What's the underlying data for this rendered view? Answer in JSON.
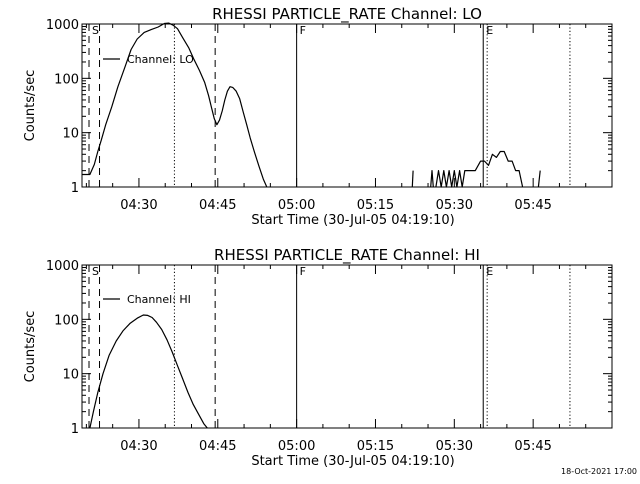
{
  "chart_data": [
    {
      "type": "line",
      "title": "RHESSI PARTICLE_RATE Channel: LO",
      "xlabel": "Start Time (30-Jul-05 04:19:10)",
      "ylabel": "Counts/sec",
      "yscale": "log",
      "ylim": [
        1,
        1000
      ],
      "xlim": [
        "04:19:10",
        "06:00:00"
      ],
      "x_tick_labels": [
        "04:30",
        "04:45",
        "05:00",
        "05:15",
        "05:30",
        "05:45"
      ],
      "y_tick_labels": [
        "1",
        "10",
        "100",
        "1000"
      ],
      "legend": {
        "label": "Channel: LO",
        "placement": "top-left"
      },
      "vertical_markers": [
        {
          "time": "04:20:30",
          "style": "dashed",
          "label": "S"
        },
        {
          "time": "04:22:30",
          "style": "dashed",
          "label": ""
        },
        {
          "time": "04:36:45",
          "style": "dotted",
          "label": ""
        },
        {
          "time": "04:44:30",
          "style": "dashed",
          "label": ""
        },
        {
          "time": "05:00:00",
          "style": "solid",
          "label": "F"
        },
        {
          "time": "05:35:30",
          "style": "solid",
          "label": "E"
        },
        {
          "time": "05:36:15",
          "style": "dotted",
          "label": ""
        },
        {
          "time": "05:52:00",
          "style": "dotted",
          "label": ""
        }
      ],
      "series": [
        {
          "name": "Channel: LO",
          "color": "#000000",
          "segments": [
            {
              "x": [
                "04:19:10",
                "04:20:40",
                "04:21:30",
                "04:22:10",
                "04:22:50",
                "04:23:40",
                "04:24:50",
                "04:26:00",
                "04:27:20",
                "04:28:30",
                "04:29:40",
                "04:31:00",
                "04:32:20",
                "04:33:40",
                "04:34:50",
                "04:35:40",
                "04:36:30",
                "04:37:20",
                "04:38:20",
                "04:39:30",
                "04:40:30",
                "04:41:30",
                "04:42:30",
                "04:43:15",
                "04:43:50",
                "04:44:20",
                "04:44:50",
                "04:45:20",
                "04:45:50",
                "04:46:20",
                "04:46:50",
                "04:47:20",
                "04:47:50",
                "04:48:30",
                "04:49:10",
                "04:49:50",
                "04:50:30",
                "04:51:10",
                "04:52:00",
                "04:52:50",
                "04:53:40",
                "04:54:20"
              ],
              "y": [
                1.7,
                1.7,
                2.6,
                4.5,
                7.3,
                14,
                30,
                70,
                160,
                340,
                530,
                700,
                790,
                880,
                1020,
                1040,
                950,
                820,
                560,
                360,
                220,
                140,
                85,
                48,
                28,
                18,
                14,
                17,
                25,
                40,
                58,
                70,
                68,
                58,
                42,
                24,
                14,
                8,
                4.3,
                2.4,
                1.4,
                1
              ]
            },
            {
              "x": [
                "05:22:00",
                "05:22:10"
              ],
              "y": [
                1,
                2
              ]
            },
            {
              "x": [
                "05:25:30",
                "05:25:45",
                "05:26:00"
              ],
              "y": [
                1,
                2,
                1
              ]
            },
            {
              "x": [
                "05:26:30",
                "05:27:00",
                "05:27:30",
                "05:28:00",
                "05:28:30",
                "05:29:00",
                "05:29:30",
                "05:30:00",
                "05:30:30",
                "05:31:00",
                "05:31:30",
                "05:32:00",
                "05:33:00",
                "05:34:00",
                "05:35:00",
                "05:35:45",
                "05:36:30",
                "05:37:15",
                "05:38:00",
                "05:38:45",
                "05:39:30",
                "05:40:15",
                "05:41:00",
                "05:41:40",
                "05:42:20",
                "05:43:00"
              ],
              "y": [
                1,
                2,
                1,
                2,
                1,
                2,
                1,
                2,
                1,
                2,
                1,
                2,
                2,
                2,
                3,
                3,
                2.5,
                4,
                3.5,
                4.5,
                4.5,
                3,
                3,
                2,
                2,
                1
              ]
            },
            {
              "x": [
                "05:46:00",
                "05:46:20"
              ],
              "y": [
                1,
                2
              ]
            }
          ]
        }
      ]
    },
    {
      "type": "line",
      "title": "RHESSI PARTICLE_RATE Channel: HI",
      "xlabel": "Start Time (30-Jul-05 04:19:10)",
      "ylabel": "Counts/sec",
      "yscale": "log",
      "ylim": [
        1,
        1000
      ],
      "xlim": [
        "04:19:10",
        "06:00:00"
      ],
      "x_tick_labels": [
        "04:30",
        "04:45",
        "05:00",
        "05:15",
        "05:30",
        "05:45"
      ],
      "y_tick_labels": [
        "1",
        "10",
        "100",
        "1000"
      ],
      "legend": {
        "label": "Channel: HI",
        "placement": "top-left"
      },
      "vertical_markers": [
        {
          "time": "04:20:30",
          "style": "dashed",
          "label": "S"
        },
        {
          "time": "04:22:30",
          "style": "dashed",
          "label": ""
        },
        {
          "time": "04:36:45",
          "style": "dotted",
          "label": ""
        },
        {
          "time": "04:44:30",
          "style": "dashed",
          "label": ""
        },
        {
          "time": "05:00:00",
          "style": "solid",
          "label": "F"
        },
        {
          "time": "05:35:30",
          "style": "solid",
          "label": "E"
        },
        {
          "time": "05:36:15",
          "style": "dotted",
          "label": ""
        },
        {
          "time": "05:52:00",
          "style": "dotted",
          "label": ""
        }
      ],
      "series": [
        {
          "name": "Channel: HI",
          "color": "#000000",
          "segments": [
            {
              "x": [
                "04:20:40",
                "04:21:20",
                "04:22:10",
                "04:23:10",
                "04:24:20",
                "04:25:40",
                "04:27:00",
                "04:28:20",
                "04:29:40",
                "04:30:50",
                "04:31:40",
                "04:32:30",
                "04:33:20",
                "04:34:20",
                "04:35:20",
                "04:36:20",
                "04:37:20",
                "04:38:20",
                "04:39:20",
                "04:40:20",
                "04:41:20",
                "04:42:20",
                "04:43:00"
              ],
              "y": [
                1,
                2,
                4.5,
                10,
                22,
                40,
                62,
                85,
                105,
                120,
                118,
                108,
                88,
                65,
                42,
                25,
                14,
                8,
                4.5,
                2.7,
                1.8,
                1.2,
                1
              ]
            }
          ]
        }
      ]
    }
  ],
  "footer": {
    "timestamp": "18-Oct-2021 17:00"
  }
}
